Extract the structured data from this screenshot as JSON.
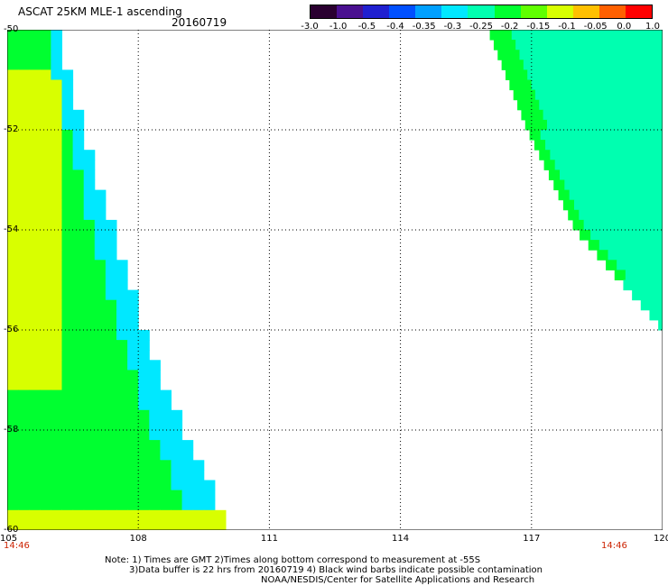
{
  "header": {
    "title": "ASCAT 25KM MLE-1 ascending",
    "date": "20160719"
  },
  "colorbar": {
    "tick_labels": [
      "-3.0",
      "-1.0",
      "-0.5",
      "-0.4",
      "-0.35",
      "-0.3",
      "-0.25",
      "-0.2",
      "-0.15",
      "-0.1",
      "-0.05",
      "0.0",
      "1.0"
    ],
    "colors": [
      "#2a0030",
      "#4a1090",
      "#2020d0",
      "#0050ff",
      "#00a0ff",
      "#00e8ff",
      "#00ffb0",
      "#00ff30",
      "#60ff00",
      "#d8ff00",
      "#ffc000",
      "#ff6000",
      "#ff0000"
    ]
  },
  "footer": {
    "time_left": "14:46",
    "time_right": "14:46",
    "note1": "Note: 1) Times are GMT 2)Times along bottom correspond to measurement at -55S",
    "note2": "3)Data buffer is 22 hrs from 20160719 4) Black wind barbs indicate possible contamination",
    "note3": "NOAA/NESDIS/Center for Satellite Applications and Research"
  },
  "chart_data": {
    "type": "heatmap",
    "title": "ASCAT 25KM MLE-1 ascending",
    "subtitle": "20160719",
    "xlabel": "",
    "ylabel": "",
    "x_ticks": [
      105,
      108,
      111,
      114,
      117,
      120
    ],
    "y_ticks": [
      -50,
      -52,
      -54,
      -56,
      -58,
      -60
    ],
    "xlim": [
      105,
      120
    ],
    "ylim": [
      -60,
      -50
    ],
    "grid": true,
    "colorbar_levels": [
      -3.0,
      -1.0,
      -0.5,
      -0.4,
      -0.35,
      -0.3,
      -0.25,
      -0.2,
      -0.15,
      -0.1,
      -0.05,
      0.0,
      1.0
    ],
    "swaths": [
      {
        "name": "west",
        "edge_lon_at_lat": [
          [
            -50,
            106.0
          ],
          [
            -52,
            106.6
          ],
          [
            -54,
            107.3
          ],
          [
            -56,
            108.0
          ],
          [
            -58,
            108.9
          ],
          [
            -60,
            110.0
          ]
        ],
        "west_lon": 105,
        "lat_range": [
          -60,
          -50
        ]
      },
      {
        "name": "east",
        "edge_lon_at_lat": [
          [
            -50,
            116.0
          ],
          [
            -52,
            116.9
          ],
          [
            -54,
            118.0
          ],
          [
            -56,
            120.0
          ]
        ],
        "east_lon": 120,
        "lat_range": [
          -56,
          -50
        ]
      }
    ],
    "value_summary": [
      {
        "region": "west swath, lon 105-106, lat -51 to -57",
        "typical_value": -0.08
      },
      {
        "region": "west swath, central",
        "typical_value": -0.16
      },
      {
        "region": "west swath, near east edge",
        "typical_value": -0.26
      },
      {
        "region": "west swath, lat -60 row",
        "typical_value": -0.07
      },
      {
        "region": "east swath, interior",
        "typical_value": -0.24
      },
      {
        "region": "east swath, west edge",
        "typical_value": -0.16
      }
    ]
  }
}
